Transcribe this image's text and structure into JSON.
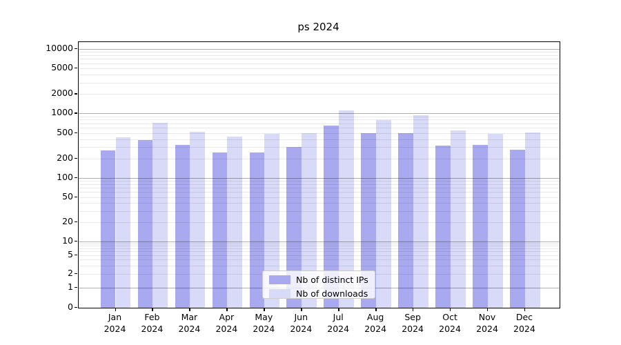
{
  "chart_data": {
    "type": "bar",
    "title": "ps 2024",
    "yscale": "symlog",
    "categories": [
      "Jan 2024",
      "Feb 2024",
      "Mar 2024",
      "Apr 2024",
      "May 2024",
      "Jun 2024",
      "Jul 2024",
      "Aug 2024",
      "Sep 2024",
      "Oct 2024",
      "Nov 2024",
      "Dec 2024"
    ],
    "series": [
      {
        "name": "Nb of distinct IPs",
        "color": "#a9a9f0",
        "values": [
          265,
          385,
          325,
          250,
          250,
          305,
          650,
          500,
          500,
          315,
          325,
          275
        ]
      },
      {
        "name": "Nb of downloads",
        "color": "#d9d9f8",
        "values": [
          425,
          710,
          520,
          440,
          480,
          490,
          1100,
          780,
          940,
          545,
          480,
          510
        ]
      }
    ],
    "yticks": [
      10000,
      5000,
      2000,
      1000,
      500,
      200,
      100,
      50,
      20,
      10,
      5,
      2,
      1,
      0
    ],
    "ylim": [
      0,
      12800
    ],
    "grid": "on",
    "legend_position": "lower center"
  },
  "colors": {
    "major_grid": "#a8a8a8",
    "minor_grid": "#e8e8e8",
    "axis": "#000000",
    "background": "#ffffff"
  }
}
